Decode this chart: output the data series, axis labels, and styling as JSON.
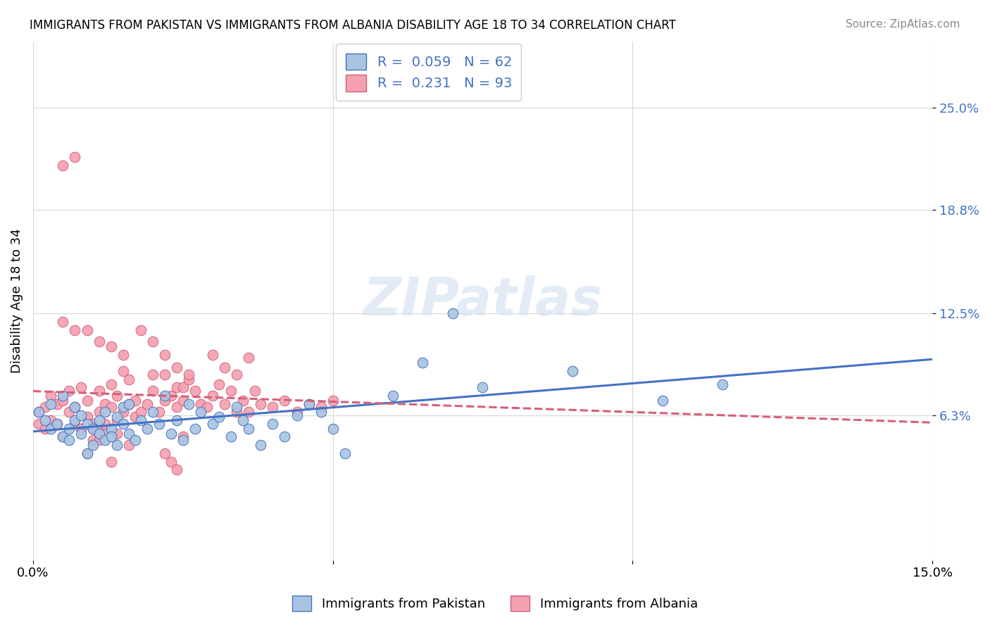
{
  "title": "IMMIGRANTS FROM PAKISTAN VS IMMIGRANTS FROM ALBANIA DISABILITY AGE 18 TO 34 CORRELATION CHART",
  "source": "Source: ZipAtlas.com",
  "ylabel": "Disability Age 18 to 34",
  "xlim": [
    0.0,
    0.15
  ],
  "ylim": [
    -0.025,
    0.29
  ],
  "ytick_positions": [
    0.063,
    0.125,
    0.188,
    0.25
  ],
  "ytick_labels": [
    "6.3%",
    "12.5%",
    "18.8%",
    "25.0%"
  ],
  "watermark": "ZIPatlas",
  "legend_r1": "R =  0.059",
  "legend_n1": "N = 62",
  "legend_r2": "R =  0.231",
  "legend_n2": "N = 93",
  "color_pakistan": "#a8c4e0",
  "color_albania": "#f4a0b0",
  "trendline_pakistan_color": "#4472c4",
  "trendline_albania_color": "#d4607a",
  "background_color": "#ffffff",
  "grid_color": "#d8d8d8",
  "pakistan_x": [
    0.001,
    0.002,
    0.003,
    0.003,
    0.004,
    0.005,
    0.005,
    0.006,
    0.006,
    0.007,
    0.007,
    0.008,
    0.008,
    0.009,
    0.009,
    0.01,
    0.01,
    0.011,
    0.011,
    0.012,
    0.012,
    0.013,
    0.013,
    0.014,
    0.014,
    0.015,
    0.015,
    0.016,
    0.016,
    0.017,
    0.018,
    0.019,
    0.02,
    0.021,
    0.022,
    0.023,
    0.024,
    0.025,
    0.026,
    0.027,
    0.028,
    0.03,
    0.031,
    0.033,
    0.034,
    0.035,
    0.036,
    0.038,
    0.04,
    0.042,
    0.044,
    0.046,
    0.048,
    0.05,
    0.052,
    0.06,
    0.065,
    0.07,
    0.075,
    0.09,
    0.105,
    0.115
  ],
  "pakistan_y": [
    0.065,
    0.06,
    0.055,
    0.07,
    0.058,
    0.05,
    0.075,
    0.055,
    0.048,
    0.06,
    0.068,
    0.052,
    0.063,
    0.058,
    0.04,
    0.055,
    0.045,
    0.06,
    0.052,
    0.048,
    0.065,
    0.055,
    0.05,
    0.062,
    0.045,
    0.068,
    0.058,
    0.052,
    0.07,
    0.048,
    0.06,
    0.055,
    0.065,
    0.058,
    0.075,
    0.052,
    0.06,
    0.048,
    0.07,
    0.055,
    0.065,
    0.058,
    0.062,
    0.05,
    0.068,
    0.06,
    0.055,
    0.045,
    0.058,
    0.05,
    0.063,
    0.07,
    0.065,
    0.055,
    0.04,
    0.075,
    0.095,
    0.125,
    0.08,
    0.09,
    0.072,
    0.082
  ],
  "albania_x": [
    0.001,
    0.001,
    0.002,
    0.002,
    0.003,
    0.003,
    0.004,
    0.004,
    0.005,
    0.005,
    0.006,
    0.006,
    0.007,
    0.007,
    0.008,
    0.008,
    0.009,
    0.009,
    0.01,
    0.01,
    0.011,
    0.011,
    0.012,
    0.012,
    0.013,
    0.013,
    0.014,
    0.014,
    0.015,
    0.015,
    0.016,
    0.016,
    0.017,
    0.017,
    0.018,
    0.019,
    0.02,
    0.02,
    0.021,
    0.022,
    0.022,
    0.023,
    0.024,
    0.024,
    0.025,
    0.025,
    0.026,
    0.027,
    0.028,
    0.029,
    0.03,
    0.031,
    0.032,
    0.033,
    0.034,
    0.035,
    0.036,
    0.037,
    0.038,
    0.04,
    0.042,
    0.044,
    0.046,
    0.048,
    0.05,
    0.005,
    0.007,
    0.009,
    0.011,
    0.013,
    0.015,
    0.018,
    0.02,
    0.022,
    0.024,
    0.026,
    0.01,
    0.012,
    0.014,
    0.016,
    0.025,
    0.03,
    0.032,
    0.034,
    0.036,
    0.022,
    0.023,
    0.024,
    0.005,
    0.007,
    0.009,
    0.011,
    0.013
  ],
  "albania_y": [
    0.065,
    0.058,
    0.055,
    0.068,
    0.06,
    0.075,
    0.058,
    0.07,
    0.05,
    0.072,
    0.065,
    0.078,
    0.058,
    0.068,
    0.08,
    0.055,
    0.072,
    0.062,
    0.058,
    0.048,
    0.065,
    0.078,
    0.055,
    0.07,
    0.068,
    0.082,
    0.06,
    0.075,
    0.065,
    0.09,
    0.07,
    0.085,
    0.062,
    0.072,
    0.065,
    0.07,
    0.078,
    0.088,
    0.065,
    0.072,
    0.088,
    0.075,
    0.08,
    0.068,
    0.072,
    0.08,
    0.085,
    0.078,
    0.07,
    0.068,
    0.075,
    0.082,
    0.07,
    0.078,
    0.065,
    0.072,
    0.065,
    0.078,
    0.07,
    0.068,
    0.072,
    0.065,
    0.07,
    0.068,
    0.072,
    0.12,
    0.115,
    0.115,
    0.108,
    0.105,
    0.1,
    0.115,
    0.108,
    0.1,
    0.092,
    0.088,
    0.055,
    0.058,
    0.052,
    0.045,
    0.05,
    0.1,
    0.092,
    0.088,
    0.098,
    0.04,
    0.035,
    0.03,
    0.215,
    0.22,
    0.04,
    0.048,
    0.035
  ]
}
